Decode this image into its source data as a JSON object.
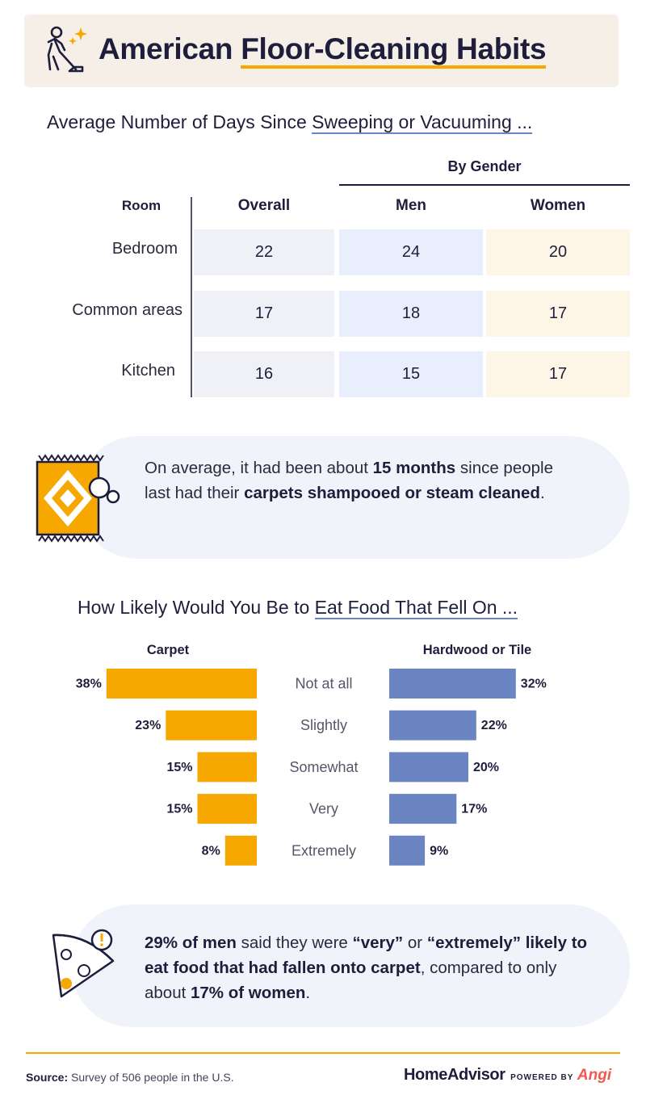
{
  "title": {
    "before": "American ",
    "underlined": "Floor-Cleaning Habits"
  },
  "table_section": {
    "title_before": "Average Number of Days Since ",
    "title_underlined": "Sweeping or Vacuuming ...",
    "group_header": "By Gender",
    "col_room": "Room",
    "col_overall": "Overall",
    "col_men": "Men",
    "col_women": "Women",
    "rows": [
      {
        "room": "Bedroom",
        "overall": "22",
        "men": "24",
        "women": "20"
      },
      {
        "room": "Common areas",
        "overall": "17",
        "men": "18",
        "women": "17"
      },
      {
        "room": "Kitchen",
        "overall": "16",
        "men": "15",
        "women": "17"
      }
    ],
    "colors": {
      "overall": "#eff1f7",
      "men": "#e8eefb",
      "women": "#fdf5e6"
    }
  },
  "callout1": {
    "t1": "On average, it had been about ",
    "b1": "15 months",
    "t2": " since people last had their ",
    "b2": "carpets shampooed or steam cleaned",
    "t3": "."
  },
  "chart_section": {
    "title_before": "How Likely Would You Be to ",
    "title_underlined": "Eat Food That Fell On ..."
  },
  "chart_data": {
    "type": "bar",
    "categories": [
      "Not at all",
      "Slightly",
      "Somewhat",
      "Very",
      "Extremely"
    ],
    "series": [
      {
        "name": "Carpet",
        "values": [
          38,
          23,
          15,
          15,
          8
        ],
        "color": "#f6a800"
      },
      {
        "name": "Hardwood or Tile",
        "values": [
          32,
          22,
          20,
          17,
          9
        ],
        "color": "#6b84c2"
      }
    ],
    "unit": "%"
  },
  "callout2": {
    "b1": "29% of men",
    "t1": " said they were ",
    "b2": "“very”",
    "t2": " or ",
    "b3": "“extremely” likely to eat food that had fallen onto carpet",
    "t3": ", compared to only about ",
    "b4": "17% of women",
    "t4": "."
  },
  "footer": {
    "source_label": "Source:",
    "source_text": " Survey of 506 people in the U.S.",
    "brand": "HomeAdvisor",
    "powered": "POWERED BY",
    "brand2": "Angi"
  },
  "icons": [
    "vacuum-icon",
    "sparkle-icon",
    "rug-icon",
    "bubbles-icon",
    "pizza-icon",
    "warning-icon"
  ]
}
